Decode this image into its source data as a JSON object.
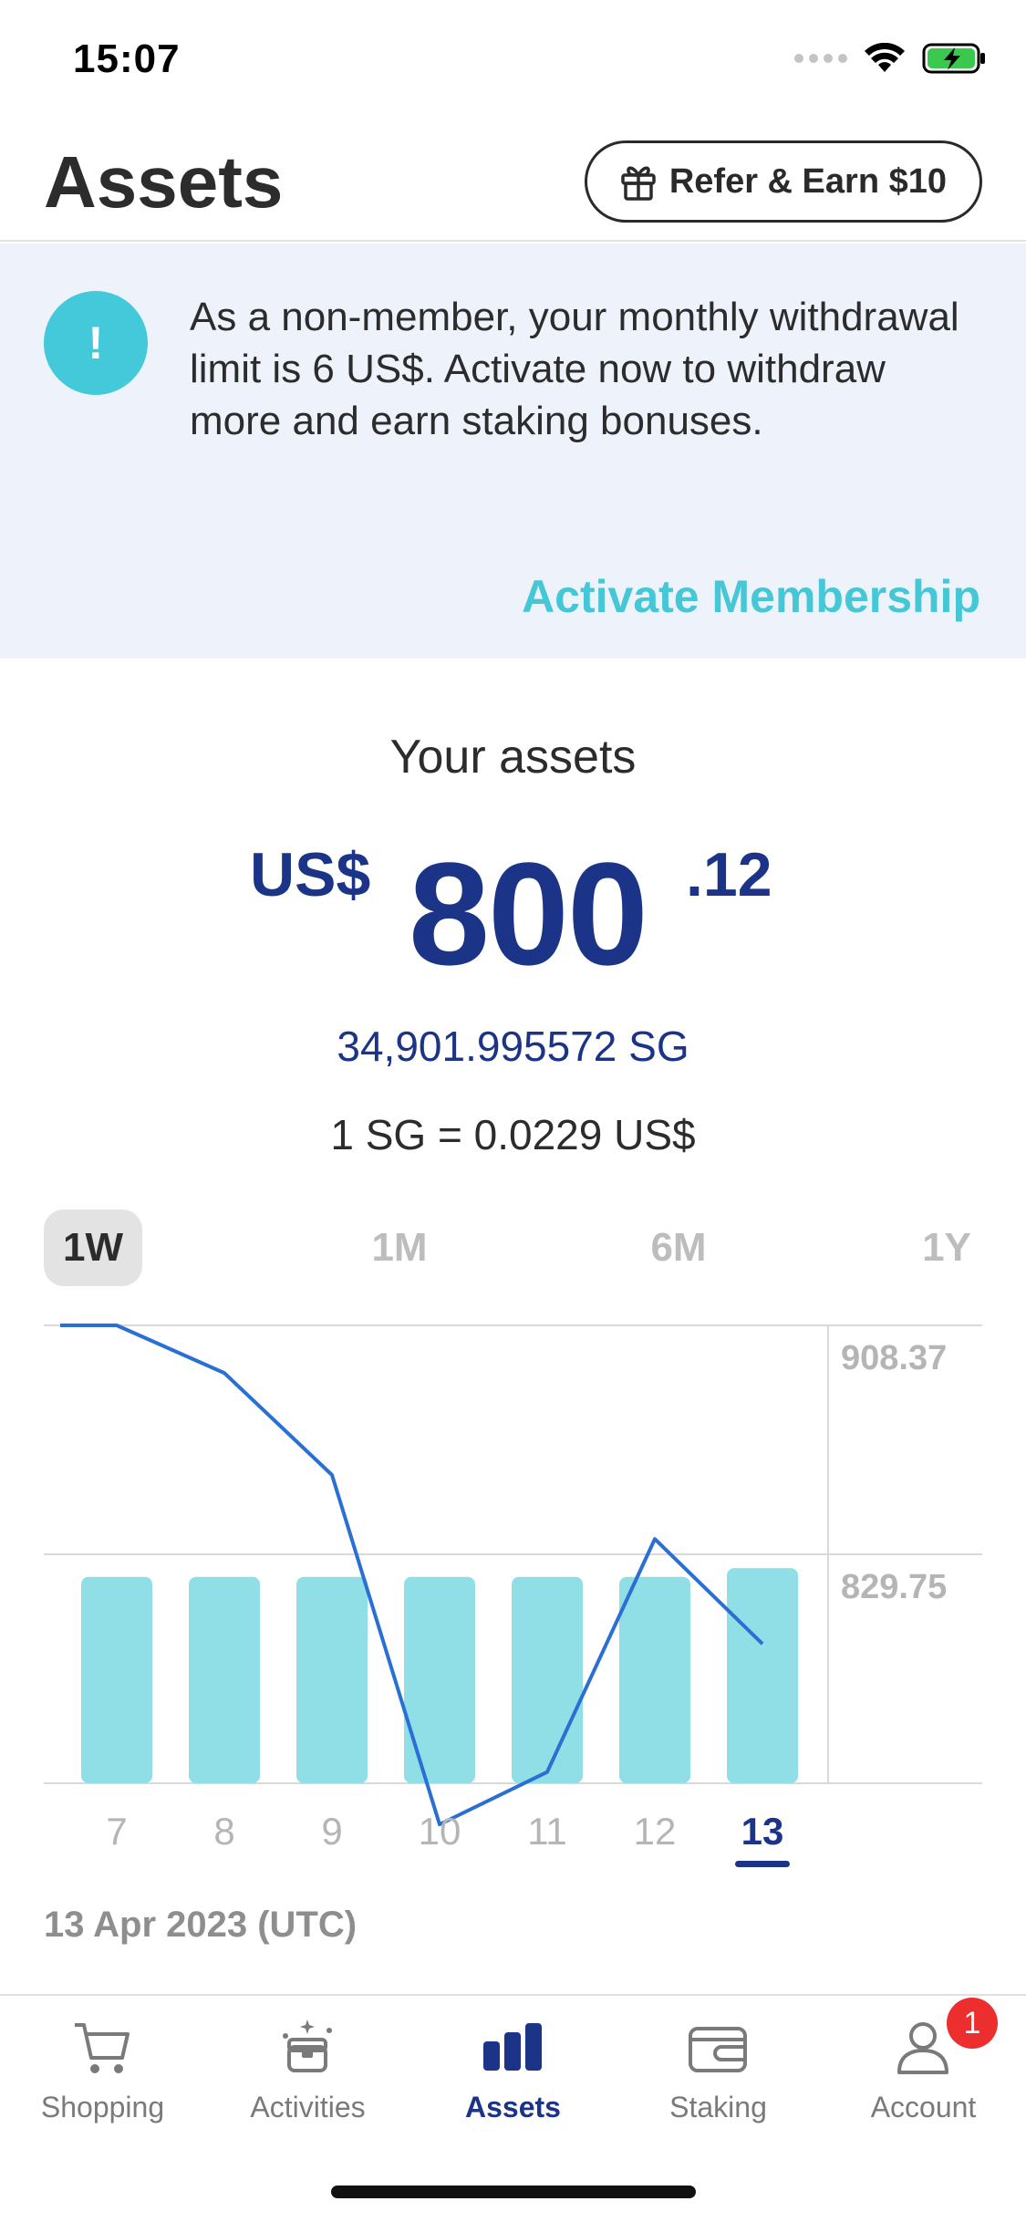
{
  "status_bar": {
    "time": "15:07"
  },
  "header": {
    "title": "Assets",
    "refer_label": "Refer & Earn $10"
  },
  "banner": {
    "icon_glyph": "!",
    "message": "As a non-member, your monthly withdrawal limit is 6 US$. Activate now to withdraw more and earn staking bonuses.",
    "link_label": "Activate Membership"
  },
  "assets": {
    "label": "Your assets",
    "currency": "US$",
    "whole": "800",
    "cents": ".12",
    "sg_amount": "34,901.995572 SG",
    "rate": "1 SG = 0.0229 US$"
  },
  "range_tabs": [
    {
      "label": "1W",
      "active": true
    },
    {
      "label": "1M",
      "active": false
    },
    {
      "label": "6M",
      "active": false
    },
    {
      "label": "1Y",
      "active": false
    }
  ],
  "chart_data": {
    "type": "bar",
    "categories": [
      "7",
      "8",
      "9",
      "10",
      "11",
      "12",
      "13"
    ],
    "selected_category": "13",
    "y_ticks": [
      "908.37",
      "829.75"
    ],
    "ylim": [
      751.13,
      908.37
    ],
    "series": [
      {
        "type": "bar",
        "values": [
          822,
          822,
          822,
          822,
          822,
          822,
          825
        ]
      },
      {
        "type": "line",
        "values": [
          908.37,
          892,
          857,
          737,
          755,
          835,
          799
        ]
      }
    ],
    "colors": {
      "bar": "#90dfe7",
      "line": "#2a6fd3",
      "selected": "#1b3488"
    }
  },
  "date_label": "13 Apr 2023 (UTC)",
  "tab_bar": [
    {
      "label": "Shopping",
      "icon": "cart-icon",
      "active": false
    },
    {
      "label": "Activities",
      "icon": "gift-box-icon",
      "active": false
    },
    {
      "label": "Assets",
      "icon": "bar-chart-icon",
      "active": true
    },
    {
      "label": "Staking",
      "icon": "wallet-icon",
      "active": false
    },
    {
      "label": "Account",
      "icon": "user-icon",
      "active": false,
      "badge": "1"
    }
  ]
}
